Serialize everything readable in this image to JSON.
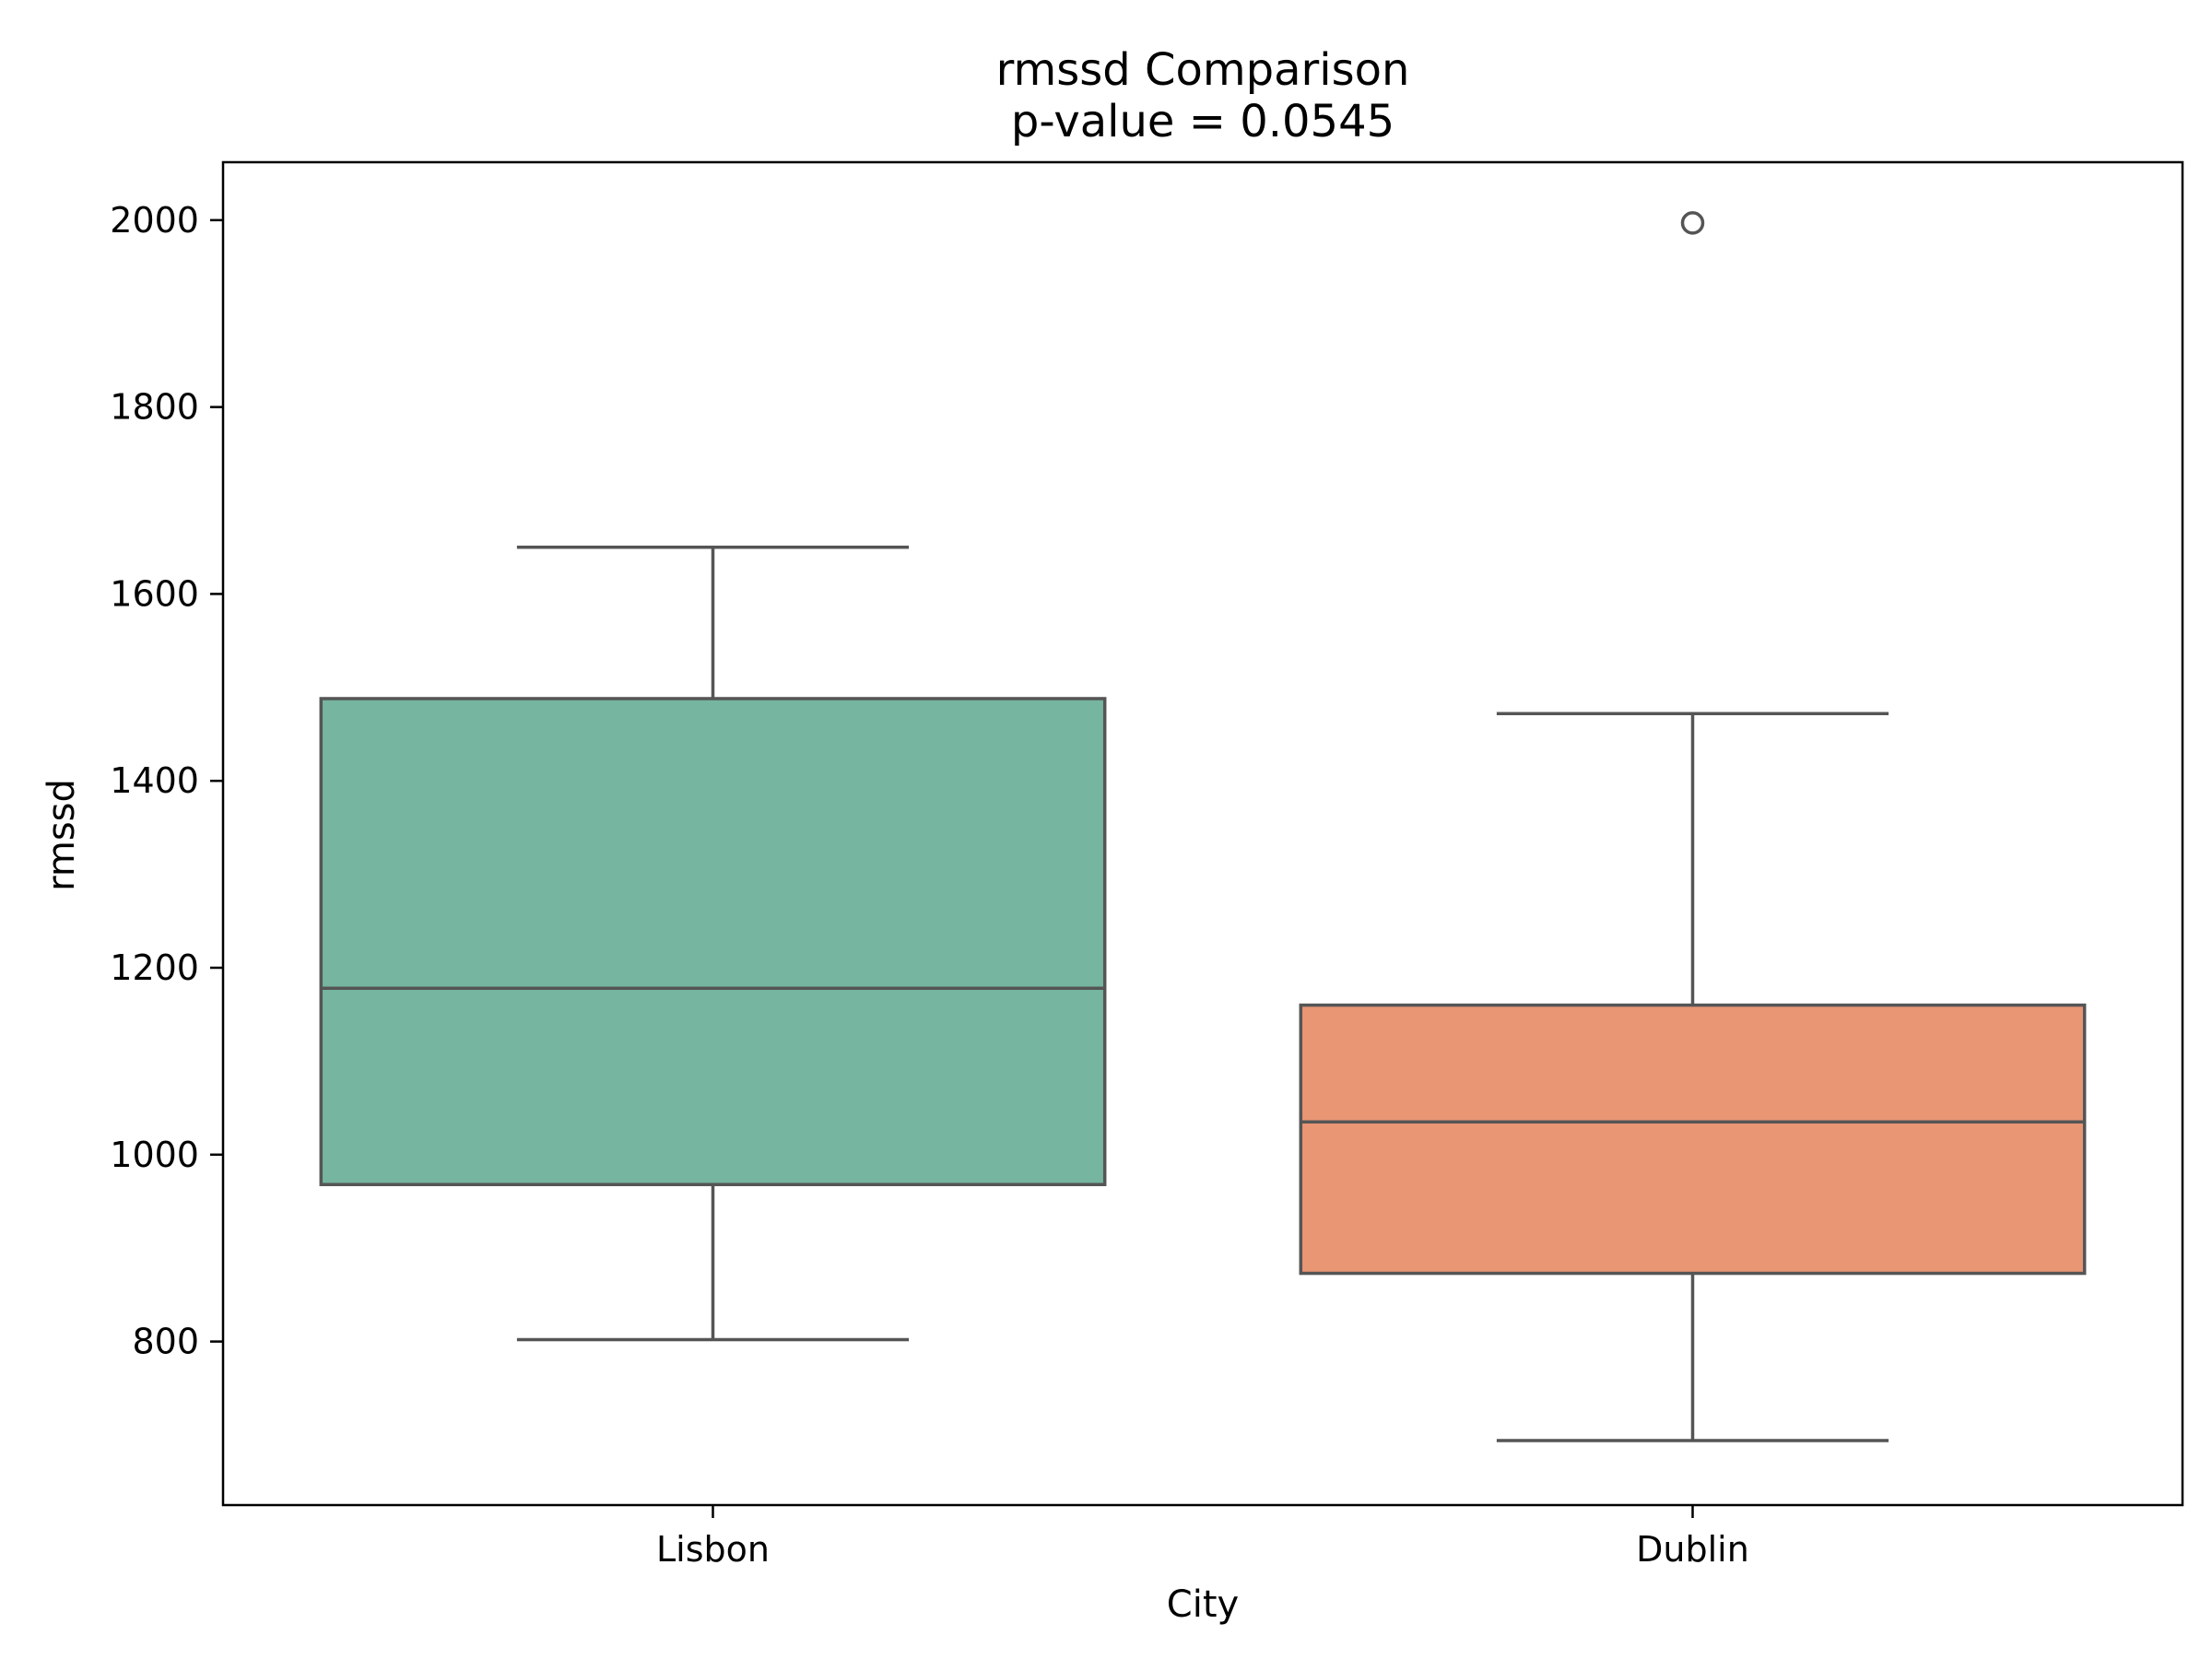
{
  "chart_data": {
    "type": "box",
    "title": "rmssd Comparison",
    "subtitle": "p-value = 0.0545",
    "xlabel": "City",
    "ylabel": "rmssd",
    "categories": [
      "Lisbon",
      "Dublin"
    ],
    "ylim": [
      625,
      2062
    ],
    "yticks": [
      800,
      1000,
      1200,
      1400,
      1600,
      1800,
      2000
    ],
    "ytick_labels": [
      "800",
      "1000",
      "1200",
      "1400",
      "1600",
      "1800",
      "2000"
    ],
    "boxes": [
      {
        "category": "Lisbon",
        "whisker_low": 802,
        "q1": 968,
        "median": 1178,
        "q3": 1488,
        "whisker_high": 1650,
        "outliers": [],
        "color": "#76b5a0"
      },
      {
        "category": "Dublin",
        "whisker_low": 694,
        "q1": 873,
        "median": 1035,
        "q3": 1160,
        "whisker_high": 1472,
        "outliers": [
          1997
        ],
        "color": "#e99675"
      }
    ],
    "line_color": "#555555",
    "grid": false,
    "legend": "none"
  }
}
